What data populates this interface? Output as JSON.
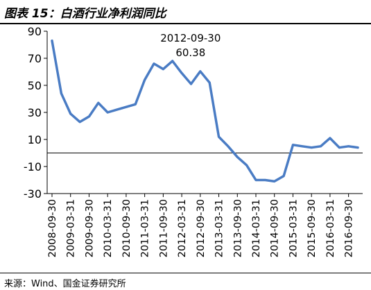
{
  "header": {
    "title": "图表 15：白酒行业净利润同比"
  },
  "source": "来源：Wind、国金证券研究所",
  "chart_data": {
    "type": "line",
    "title": "",
    "xlabel": "",
    "ylabel": "",
    "ylim": [
      -30,
      90
    ],
    "yticks": [
      -30,
      -10,
      10,
      30,
      50,
      70,
      90
    ],
    "grid": false,
    "line_color": "#4a7cc4",
    "x_tick_labels": [
      "2008-09-30",
      "2009-03-31",
      "2009-09-30",
      "2010-03-31",
      "2010-09-30",
      "2011-03-31",
      "2011-09-30",
      "2012-03-31",
      "2012-09-30",
      "2013-03-31",
      "2013-09-30",
      "2014-03-31",
      "2014-09-30",
      "2015-03-31",
      "2015-09-30",
      "2016-03-31",
      "2016-09-30"
    ],
    "x": [
      "2008-09-30",
      "2008-12-31",
      "2009-03-31",
      "2009-06-30",
      "2009-09-30",
      "2009-12-31",
      "2010-03-31",
      "2010-06-30",
      "2010-09-30",
      "2010-12-31",
      "2011-03-31",
      "2011-06-30",
      "2011-09-30",
      "2011-12-31",
      "2012-03-31",
      "2012-06-30",
      "2012-09-30",
      "2012-12-31",
      "2013-03-31",
      "2013-06-30",
      "2013-09-30",
      "2013-12-31",
      "2014-03-31",
      "2014-06-30",
      "2014-09-30",
      "2014-12-31",
      "2015-03-31",
      "2015-06-30",
      "2015-09-30",
      "2015-12-31",
      "2016-03-31",
      "2016-06-30",
      "2016-09-30",
      "2016-12-31"
    ],
    "series": [
      {
        "values": [
          83,
          44,
          29,
          23,
          27,
          37,
          30,
          32,
          34,
          36,
          54,
          66,
          62,
          68,
          59,
          51,
          60.38,
          52,
          12,
          5,
          -3,
          -9,
          -20,
          -20,
          -21,
          -17,
          6,
          5,
          4,
          5,
          11,
          4,
          5,
          4
        ]
      }
    ],
    "annotation": {
      "x": "2012-09-30",
      "y": 60.38,
      "date_text": "2012-09-30",
      "value_text": "60.38"
    }
  }
}
